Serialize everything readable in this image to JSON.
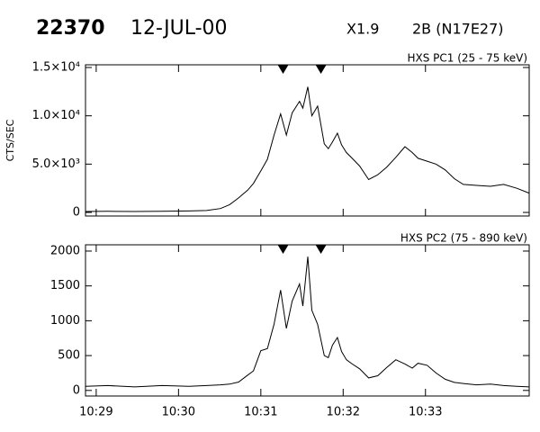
{
  "header": {
    "id": "22370",
    "date": "12-JUL-00",
    "class": "X1.9",
    "flare": "2B (N17E27)"
  },
  "chart_data": [
    {
      "type": "line",
      "label": "HXS PC1 (25 - 75 keV)",
      "ylabel": "CTS/SEC",
      "color": "#000000",
      "x": [
        28.87,
        29.14,
        29.47,
        29.8,
        30.13,
        30.34,
        30.51,
        30.62,
        30.73,
        30.84,
        30.91,
        31.0,
        31.08,
        31.16,
        31.24,
        31.31,
        31.38,
        31.47,
        31.51,
        31.57,
        31.62,
        31.69,
        31.77,
        31.82,
        31.87,
        31.93,
        31.98,
        32.04,
        32.11,
        32.2,
        32.31,
        32.42,
        32.53,
        32.64,
        32.75,
        32.84,
        32.91,
        33.02,
        33.13,
        33.24,
        33.35,
        33.46,
        33.62,
        33.79,
        33.95,
        34.11,
        34.26
      ],
      "values": [
        100,
        110,
        100,
        120,
        150,
        200,
        400,
        800,
        1500,
        2300,
        3000,
        4300,
        5500,
        8000,
        10200,
        8000,
        10300,
        11500,
        10800,
        13000,
        10000,
        11000,
        7100,
        6600,
        7300,
        8200,
        7000,
        6200,
        5600,
        4800,
        3400,
        3900,
        4700,
        5700,
        6800,
        6200,
        5600,
        5300,
        5000,
        4400,
        3500,
        2900,
        2800,
        2700,
        2900,
        2500,
        2000
      ],
      "markers": [
        31.27,
        31.73
      ],
      "xlim": [
        28.87,
        34.26
      ],
      "ylim": [
        -370,
        15280
      ],
      "yticks": [
        0,
        {
          "value": 5000,
          "label": "5.0×10³"
        },
        {
          "value": 10000,
          "label": "1.0×10⁴"
        },
        {
          "value": 15000,
          "label": "1.5×10⁴"
        }
      ]
    },
    {
      "type": "line",
      "label": "HXS PC2 (75 - 890 keV)",
      "color": "#000000",
      "x": [
        28.87,
        29.14,
        29.47,
        29.8,
        30.13,
        30.34,
        30.51,
        30.62,
        30.73,
        30.84,
        30.91,
        31.0,
        31.08,
        31.16,
        31.24,
        31.31,
        31.38,
        31.47,
        31.51,
        31.57,
        31.62,
        31.69,
        31.77,
        31.82,
        31.87,
        31.93,
        31.98,
        32.04,
        32.11,
        32.2,
        32.31,
        32.42,
        32.53,
        32.64,
        32.75,
        32.84,
        32.91,
        33.02,
        33.13,
        33.24,
        33.35,
        33.46,
        33.62,
        33.79,
        33.95,
        34.11,
        34.26
      ],
      "values": [
        60,
        70,
        50,
        70,
        60,
        70,
        80,
        90,
        120,
        220,
        280,
        570,
        600,
        950,
        1440,
        890,
        1280,
        1530,
        1210,
        1920,
        1150,
        950,
        500,
        470,
        650,
        760,
        560,
        440,
        380,
        310,
        180,
        210,
        330,
        440,
        380,
        320,
        390,
        360,
        250,
        160,
        115,
        100,
        80,
        90,
        70,
        60,
        50
      ],
      "xlim": [
        28.87,
        34.26
      ],
      "ylim": [
        -80,
        2090
      ],
      "yticks": [
        0,
        500,
        1000,
        1500,
        2000
      ],
      "xticks": [
        {
          "value": 29,
          "label": "10:29"
        },
        {
          "value": 30,
          "label": "10:30"
        },
        {
          "value": 31,
          "label": "10:31"
        },
        {
          "value": 32,
          "label": "10:32"
        },
        {
          "value": 33,
          "label": "10:33"
        }
      ]
    }
  ]
}
